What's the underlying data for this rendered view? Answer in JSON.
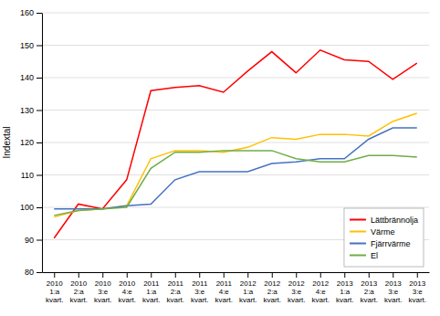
{
  "chart_data": {
    "type": "line",
    "ylabel": "Indextal",
    "categories": [
      "2010\n1:a\nkvart.",
      "2010\n2:a\nkvart.",
      "2010\n3:e\nkvart.",
      "2010\n4:e\nkvart.",
      "2011\n1:a\nkvart.",
      "2011\n2:a\nkvart.",
      "2011\n3:e\nkvart.",
      "2011\n4:e\nkvart.",
      "2012\n1:a\nkvart.",
      "2012\n2:a\nkvart.",
      "2012\n3:e\nkvart.",
      "2012\n4:e\nkvart.",
      "2013\n1:a\nkvart.",
      "2013\n2:a\nkvart.",
      "2013\n3:e\nkvart.",
      "2013\n3:e\nkvart."
    ],
    "series": [
      {
        "name": "Lättbrännolja",
        "color": "#FF0000",
        "values": [
          90.5,
          101.0,
          99.5,
          108.5,
          136.0,
          137.0,
          137.5,
          135.5,
          142.0,
          148.0,
          141.5,
          148.5,
          145.5,
          145.0,
          139.5,
          144.5
        ]
      },
      {
        "name": "Värme",
        "color": "#FFC000",
        "values": [
          97.0,
          99.0,
          99.5,
          100.5,
          115.0,
          117.5,
          117.5,
          117.0,
          118.5,
          121.5,
          121.0,
          122.5,
          122.5,
          122.0,
          126.5,
          129.0
        ]
      },
      {
        "name": "Fjärrvärme",
        "color": "#4472C4",
        "values": [
          99.5,
          99.5,
          99.5,
          100.5,
          101.0,
          108.5,
          111.0,
          111.0,
          111.0,
          113.5,
          114.0,
          115.0,
          115.0,
          121.0,
          124.5,
          124.5
        ]
      },
      {
        "name": "El",
        "color": "#70AD47",
        "values": [
          97.5,
          99.0,
          99.5,
          100.0,
          112.0,
          117.0,
          117.0,
          117.5,
          117.5,
          117.5,
          115.0,
          114.0,
          114.0,
          116.0,
          116.0,
          115.5
        ]
      }
    ],
    "ylim": [
      80,
      160
    ],
    "yticks": [
      80,
      90,
      100,
      110,
      120,
      130,
      140,
      150,
      160
    ],
    "grid": true,
    "legend": "lower right"
  }
}
